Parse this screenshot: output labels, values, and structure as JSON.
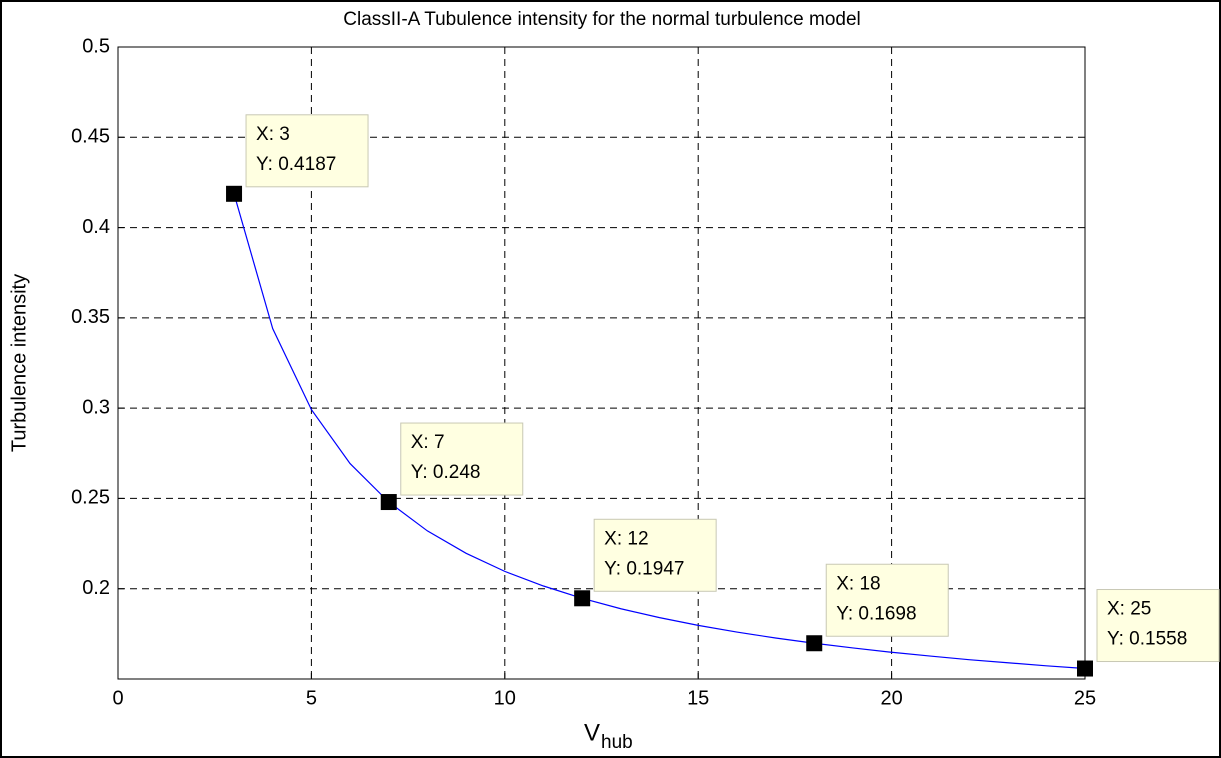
{
  "chart_data": {
    "type": "line",
    "title": "ClassII-A Tubulence intensity for the normal turbulence model",
    "xlabel": "V",
    "xlabel_sub": "hub",
    "ylabel": "Turbulence intensity",
    "x": [
      3,
      4,
      5,
      6,
      7,
      8,
      9,
      10,
      11,
      12,
      13,
      14,
      15,
      16,
      17,
      18,
      19,
      20,
      21,
      22,
      23,
      24,
      25
    ],
    "series": [
      {
        "color": "#0000ff",
        "values": [
          0.4187,
          0.344,
          0.2992,
          0.2693,
          0.248,
          0.232,
          0.2196,
          0.2096,
          0.2015,
          0.1947,
          0.1889,
          0.184,
          0.1797,
          0.176,
          0.1727,
          0.1698,
          0.1672,
          0.1648,
          0.1627,
          0.1607,
          0.159,
          0.1573,
          0.1558
        ]
      }
    ],
    "xlim": [
      0,
      25
    ],
    "xticks": [
      0,
      5,
      10,
      15,
      20,
      25
    ],
    "ylim": [
      0.15,
      0.5
    ],
    "yticks": [
      0.2,
      0.25,
      0.3,
      0.35,
      0.4,
      0.45,
      0.5
    ],
    "grid": true,
    "annotations": [
      {
        "x": 3,
        "y": 0.4187,
        "text": [
          "X: 3",
          "Y: 0.4187"
        ]
      },
      {
        "x": 7,
        "y": 0.248,
        "text": [
          "X: 7",
          "Y: 0.248"
        ]
      },
      {
        "x": 12,
        "y": 0.1947,
        "text": [
          "X: 12",
          "Y: 0.1947"
        ]
      },
      {
        "x": 18,
        "y": 0.1698,
        "text": [
          "X: 18",
          "Y: 0.1698"
        ]
      },
      {
        "x": 25,
        "y": 0.1558,
        "text": [
          "X: 25",
          "Y: 0.1558"
        ]
      }
    ]
  }
}
